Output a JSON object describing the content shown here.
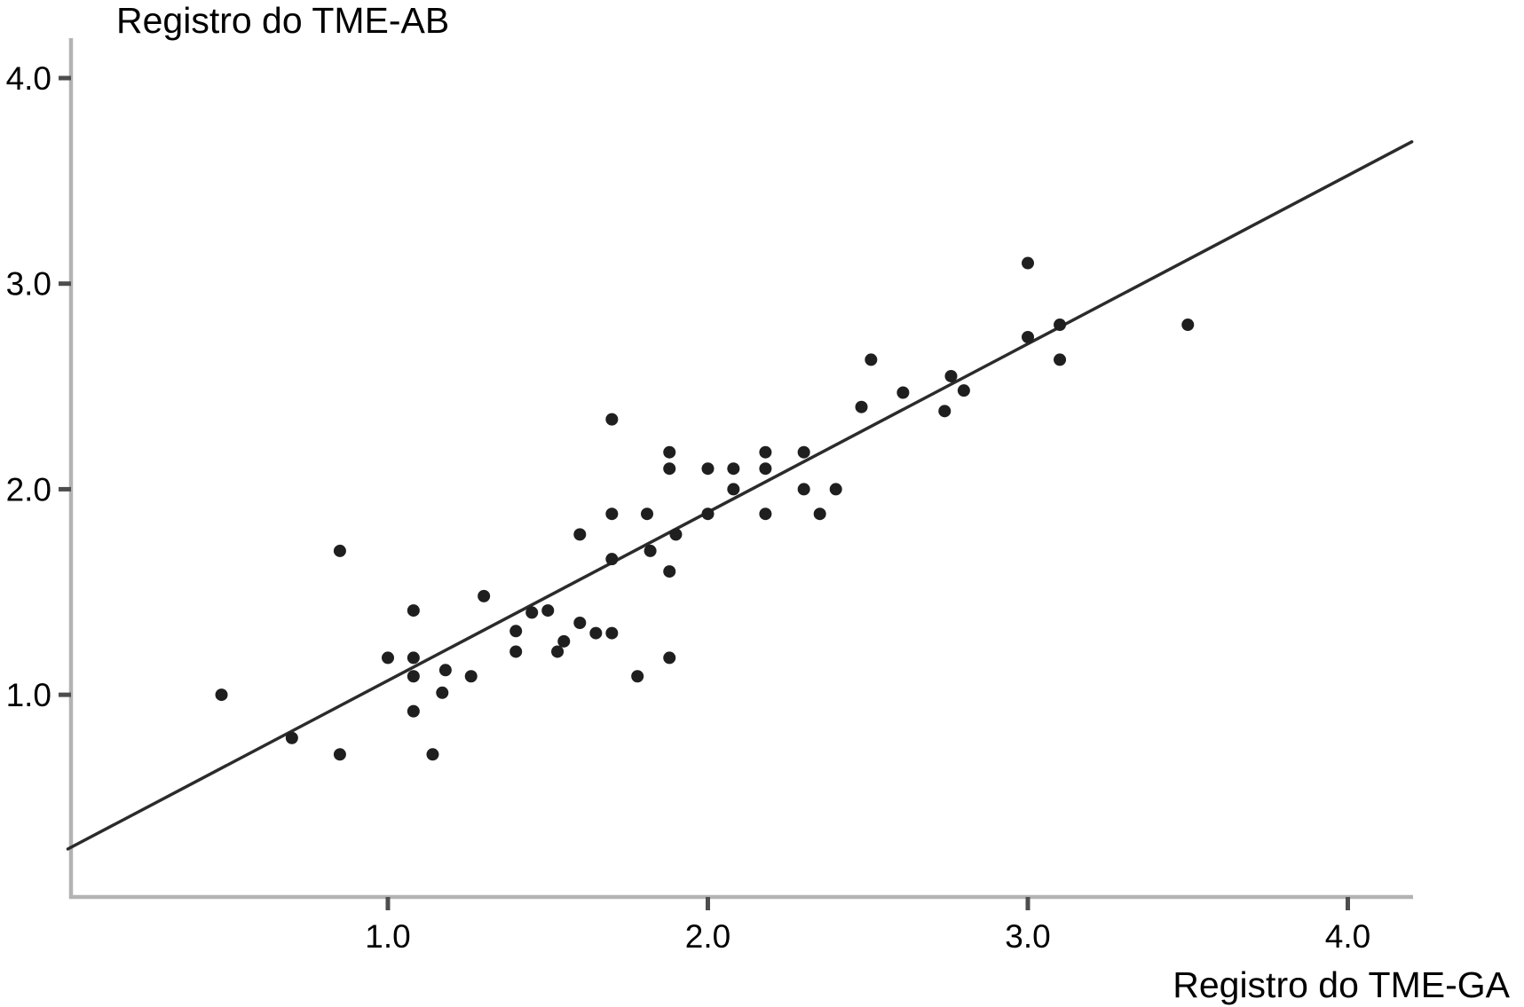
{
  "figure": {
    "background": "#ffffff"
  },
  "chart_data": {
    "type": "scatter",
    "title": "",
    "xlabel": "Registro do TME-GA",
    "ylabel": "Registro do TME-AB",
    "xlim": [
      0,
      4.2
    ],
    "ylim": [
      0,
      4.2
    ],
    "x_ticks": [
      1.0,
      2.0,
      3.0,
      4.0
    ],
    "y_ticks": [
      1.0,
      2.0,
      3.0,
      4.0
    ],
    "x_tick_labels": [
      "1.0",
      "2.0",
      "3.0",
      "4.0"
    ],
    "y_tick_labels": [
      "1.0",
      "2.0",
      "3.0",
      "4.0"
    ],
    "grid": false,
    "legend": false,
    "point_color": "#1f1f1f",
    "line_color": "#2b2b2b",
    "axis_color": "#b3b3b3",
    "tick_color": "#4d4d4d",
    "label_color": "#000000",
    "regression_line": {
      "x1": 0.0,
      "y1": 0.25,
      "x2": 4.2,
      "y2": 3.69
    },
    "points": [
      [
        0.48,
        1.0
      ],
      [
        0.7,
        0.79
      ],
      [
        0.85,
        1.7
      ],
      [
        0.85,
        0.71
      ],
      [
        1.0,
        1.18
      ],
      [
        1.08,
        1.41
      ],
      [
        1.08,
        1.18
      ],
      [
        1.08,
        1.09
      ],
      [
        1.08,
        0.92
      ],
      [
        1.14,
        0.71
      ],
      [
        1.17,
        1.01
      ],
      [
        1.18,
        1.12
      ],
      [
        1.26,
        1.09
      ],
      [
        1.3,
        1.48
      ],
      [
        1.4,
        1.31
      ],
      [
        1.4,
        1.21
      ],
      [
        1.45,
        1.4
      ],
      [
        1.5,
        1.41
      ],
      [
        1.53,
        1.21
      ],
      [
        1.55,
        1.26
      ],
      [
        1.6,
        1.78
      ],
      [
        1.6,
        1.35
      ],
      [
        1.65,
        1.3
      ],
      [
        1.7,
        2.34
      ],
      [
        1.7,
        1.88
      ],
      [
        1.7,
        1.66
      ],
      [
        1.7,
        1.3
      ],
      [
        1.78,
        1.09
      ],
      [
        1.81,
        1.88
      ],
      [
        1.82,
        1.7
      ],
      [
        1.88,
        2.18
      ],
      [
        1.88,
        2.1
      ],
      [
        1.88,
        1.6
      ],
      [
        1.88,
        1.18
      ],
      [
        1.9,
        1.78
      ],
      [
        2.0,
        2.1
      ],
      [
        2.0,
        1.88
      ],
      [
        2.08,
        2.1
      ],
      [
        2.08,
        2.0
      ],
      [
        2.18,
        2.18
      ],
      [
        2.18,
        2.1
      ],
      [
        2.18,
        1.88
      ],
      [
        2.3,
        2.18
      ],
      [
        2.3,
        2.0
      ],
      [
        2.35,
        1.88
      ],
      [
        2.4,
        2.0
      ],
      [
        2.48,
        2.4
      ],
      [
        2.51,
        2.63
      ],
      [
        2.61,
        2.47
      ],
      [
        2.74,
        2.38
      ],
      [
        2.76,
        2.55
      ],
      [
        2.8,
        2.48
      ],
      [
        3.0,
        3.1
      ],
      [
        3.0,
        2.74
      ],
      [
        3.1,
        2.8
      ],
      [
        3.1,
        2.63
      ],
      [
        3.5,
        2.8
      ]
    ]
  }
}
